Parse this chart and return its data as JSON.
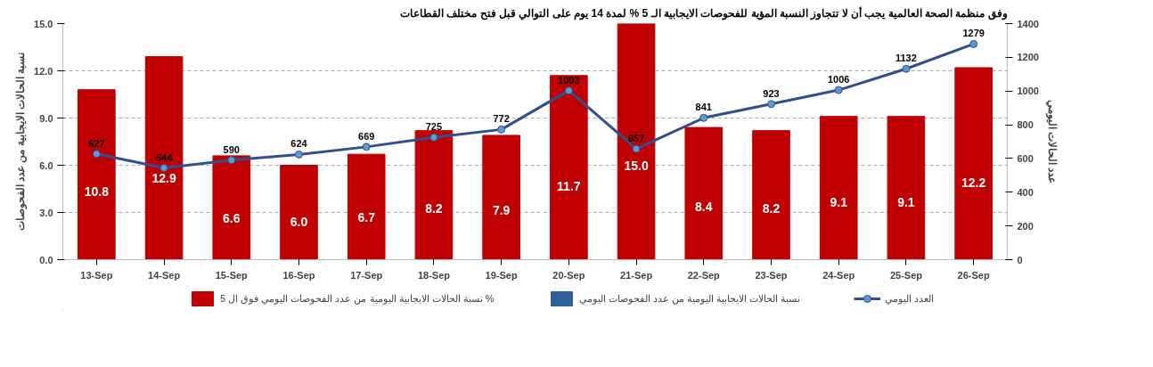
{
  "chart_data": {
    "type": "bar",
    "title": "وفق منظمة الصحة العالمية يجب أن لا تتجاوز النسبة المؤية للفحوصات الايجابية الـ 5 % لمدة 14 يوم على التوالي قبل فتح مختلف القطاعات",
    "ylabel": "نسبة الحالات الايجابية من عدد الفحوصات",
    "y2label": "عدد الحالات اليومي",
    "categories": [
      "13-Sep",
      "14-Sep",
      "15-Sep",
      "16-Sep",
      "17-Sep",
      "18-Sep",
      "19-Sep",
      "20-Sep",
      "21-Sep",
      "22-Sep",
      "23-Sep",
      "24-Sep",
      "25-Sep",
      "26-Sep"
    ],
    "series": [
      {
        "name": "نسبة الحالات الايجابية اليومية من عدد الفحوصات اليومي فوق ال 5 %",
        "color": "#c00000",
        "values": [
          10.8,
          12.9,
          6.6,
          6.0,
          6.7,
          8.2,
          7.9,
          11.7,
          15.0,
          8.4,
          8.2,
          9.1,
          9.1,
          12.2
        ],
        "value_labels": [
          "10.8",
          "12.9",
          "6.6",
          "6.0",
          "6.7",
          "8.2",
          "7.9",
          "11.7",
          "15.0",
          "8.4",
          "8.2",
          "9.1",
          "9.1",
          "12.2"
        ]
      },
      {
        "name": "نسبة الحالات الايجابية اليومية من عدد الفحوصات اليومي",
        "color": "#2f5f9a",
        "values": [
          null,
          null,
          null,
          null,
          null,
          null,
          null,
          null,
          null,
          null,
          null,
          null,
          null,
          null
        ]
      },
      {
        "name": "العدد اليومي",
        "type": "line",
        "axis": "y2",
        "color": "#2f4f8f",
        "marker": "circle",
        "values": [
          627,
          544,
          590,
          624,
          669,
          725,
          772,
          1003,
          657,
          841,
          923,
          1006,
          1132,
          1279
        ],
        "value_labels": [
          "627",
          "544",
          "590",
          "624",
          "669",
          "725",
          "772",
          "1003",
          "657",
          "841",
          "923",
          "1006",
          "1132",
          "1279"
        ]
      }
    ],
    "ylim": [
      0,
      15
    ],
    "yticks": [
      {
        "value": 0,
        "label": "0.0"
      },
      {
        "value": 3,
        "label": "3.0"
      },
      {
        "value": 6,
        "label": "6.0"
      },
      {
        "value": 9,
        "label": "9.0"
      },
      {
        "value": 12,
        "label": "12.0"
      },
      {
        "value": 15,
        "label": "15.0"
      }
    ],
    "y2lim": [
      0,
      1400
    ],
    "y2ticks": [
      0,
      200,
      400,
      600,
      800,
      1000,
      1200,
      1400
    ],
    "grid": "y",
    "legend": "bottom"
  }
}
